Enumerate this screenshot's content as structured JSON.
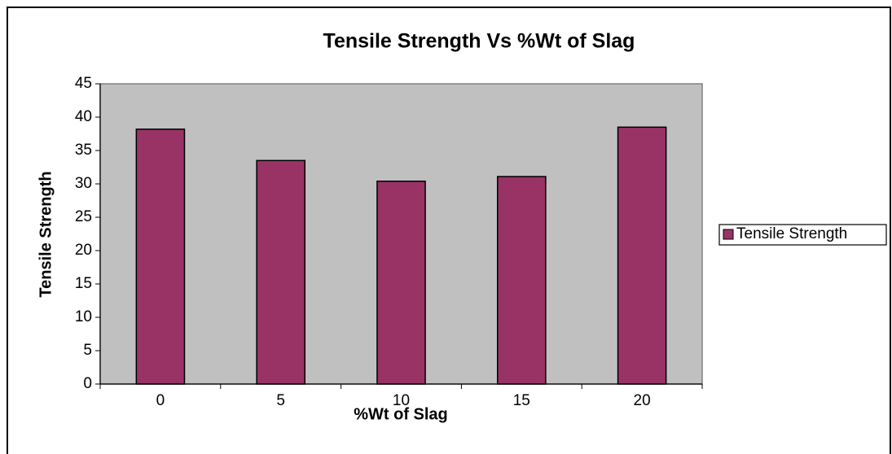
{
  "chart_data": {
    "type": "bar",
    "title": "Tensile Strength Vs %Wt of Slag",
    "x_label": "%Wt of Slag",
    "y_label": "Tensile Strength",
    "categories": [
      "0",
      "5",
      "10",
      "15",
      "20"
    ],
    "series": [
      {
        "name": "Tensile Strength",
        "color": "#993366",
        "values": [
          38.2,
          33.5,
          30.4,
          31.1,
          38.5
        ]
      }
    ],
    "ylim": [
      0,
      45
    ],
    "yticks": [
      0,
      5,
      10,
      15,
      20,
      25,
      30,
      35,
      40,
      45
    ],
    "grid": false,
    "plot_background": "#c0c0c0",
    "legend": "right"
  }
}
